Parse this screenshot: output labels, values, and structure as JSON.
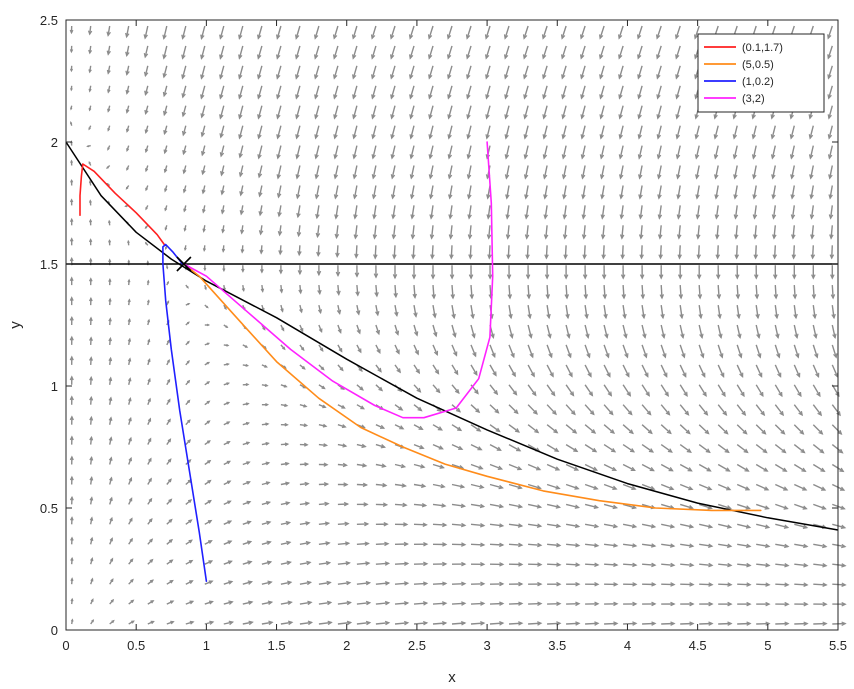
{
  "chart_data": {
    "type": "line",
    "title": "",
    "xlabel": "x",
    "ylabel": "y",
    "xlim": [
      0,
      5.5
    ],
    "ylim": [
      0,
      2.5
    ],
    "xticks": [
      0,
      0.5,
      1,
      1.5,
      2,
      2.5,
      3,
      3.5,
      4,
      4.5,
      5,
      5.5
    ],
    "yticks": [
      0,
      0.5,
      1,
      1.5,
      2,
      2.5
    ],
    "xtick_labels": [
      "0",
      "0.5",
      "1",
      "1.5",
      "2",
      "2.5",
      "3",
      "3.5",
      "4",
      "4.5",
      "5",
      "5.5"
    ],
    "ytick_labels": [
      "0",
      "0.5",
      "1",
      "1.5",
      "2",
      "2.5"
    ],
    "grid": false,
    "legend_position": "top-right",
    "vector_field": {
      "present": true,
      "color": "#8c8c8c"
    },
    "nullclines": [
      {
        "kind": "horizontal",
        "y": 1.5,
        "color": "#000000"
      },
      {
        "kind": "curve",
        "color": "#000000",
        "x": [
          0,
          0.25,
          0.5,
          0.75,
          1,
          1.5,
          2,
          2.5,
          3,
          3.5,
          4,
          4.5,
          5,
          5.5
        ],
        "y": [
          2.0,
          1.78,
          1.63,
          1.52,
          1.43,
          1.28,
          1.11,
          0.95,
          0.82,
          0.7,
          0.6,
          0.52,
          0.46,
          0.41
        ]
      }
    ],
    "equilibrium": {
      "x": 0.84,
      "y": 1.5,
      "marker": "x",
      "color": "#000000"
    },
    "series": [
      {
        "name": "(0.1,1.7)",
        "color": "#ff2020",
        "x": [
          0.1,
          0.1,
          0.11,
          0.12,
          0.2,
          0.35,
          0.5,
          0.65,
          0.7
        ],
        "y": [
          1.7,
          1.78,
          1.86,
          1.91,
          1.88,
          1.79,
          1.71,
          1.62,
          1.58
        ]
      },
      {
        "name": "(5,0.5)",
        "color": "#ff8c1a",
        "x": [
          4.95,
          4.6,
          4.2,
          3.8,
          3.4,
          3.0,
          2.7,
          2.4,
          2.1,
          1.8,
          1.5,
          1.2,
          0.95,
          0.84
        ],
        "y": [
          0.49,
          0.49,
          0.5,
          0.53,
          0.57,
          0.63,
          0.68,
          0.75,
          0.83,
          0.95,
          1.1,
          1.29,
          1.45,
          1.5
        ]
      },
      {
        "name": "(1,0.2)",
        "color": "#2020ff",
        "x": [
          1.0,
          0.95,
          0.88,
          0.81,
          0.75,
          0.71,
          0.69,
          0.69,
          0.71,
          0.76,
          0.83
        ],
        "y": [
          0.2,
          0.4,
          0.65,
          0.9,
          1.15,
          1.35,
          1.5,
          1.57,
          1.58,
          1.55,
          1.5
        ]
      },
      {
        "name": "(3,2)",
        "color": "#ff22ff",
        "x": [
          3.0,
          3.03,
          3.04,
          3.02,
          2.94,
          2.78,
          2.55,
          2.4,
          2.2,
          1.9,
          1.6,
          1.3,
          1.0,
          0.84
        ],
        "y": [
          2.0,
          1.75,
          1.45,
          1.2,
          1.03,
          0.91,
          0.87,
          0.87,
          0.92,
          1.02,
          1.15,
          1.3,
          1.45,
          1.5
        ]
      }
    ]
  }
}
